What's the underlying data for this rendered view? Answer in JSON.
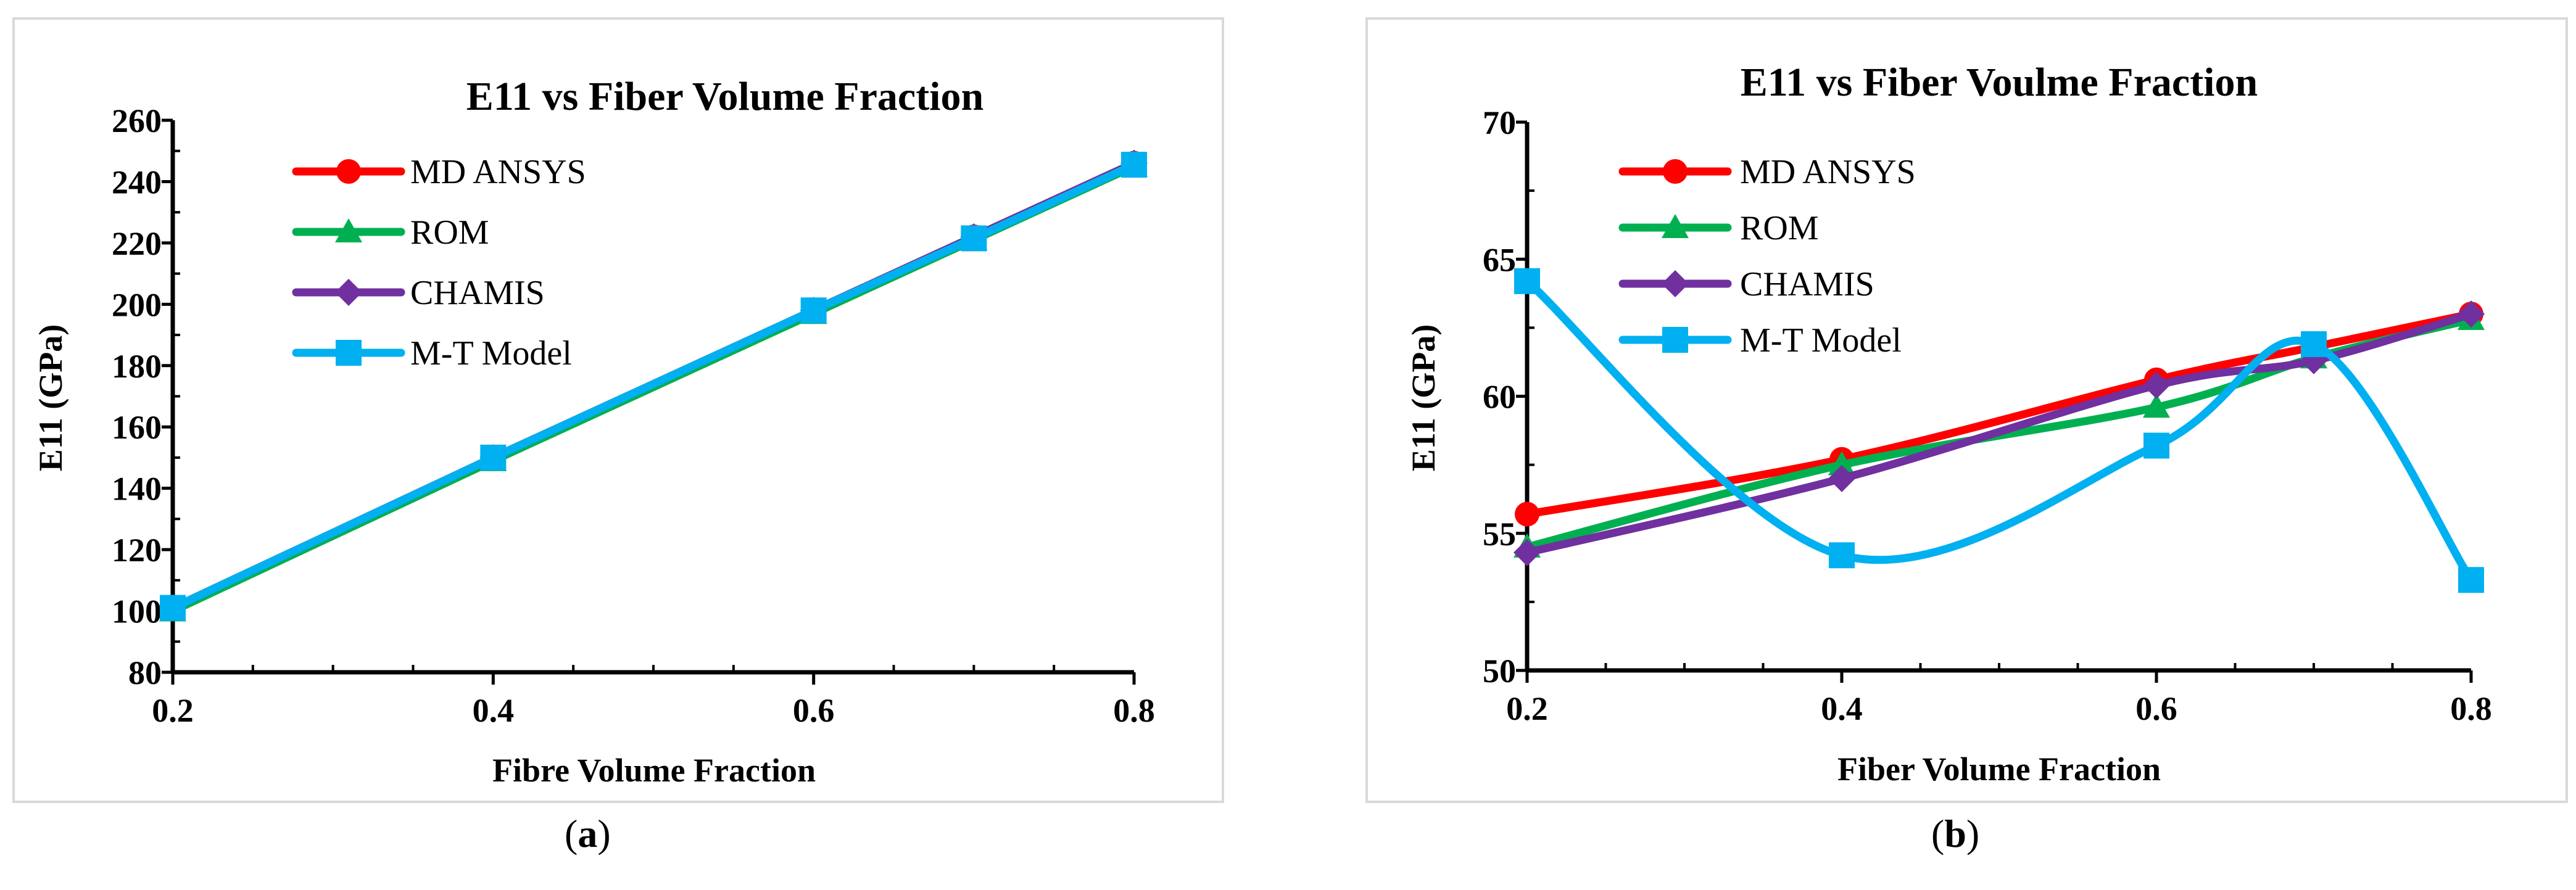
{
  "chart_data": [
    {
      "type": "line",
      "panel": "(a)",
      "title": "E11 vs Fiber Volume Fraction",
      "xlabel": "Fibre Volume Fraction",
      "ylabel": "E11 (GPa)",
      "x": [
        0.2,
        0.4,
        0.6,
        0.7,
        0.8
      ],
      "xticks": [
        "0.2",
        "0.4",
        "0.6",
        "0.8"
      ],
      "xtick_values": [
        0.2,
        0.4,
        0.6,
        0.8
      ],
      "xlim": [
        0.2,
        0.8
      ],
      "ylim": [
        80,
        260
      ],
      "yticks": [
        "80",
        "100",
        "120",
        "140",
        "160",
        "180",
        "200",
        "220",
        "240",
        "260"
      ],
      "ytick_values": [
        80,
        100,
        120,
        140,
        160,
        180,
        200,
        220,
        240,
        260
      ],
      "legend_position": "top-left",
      "series": [
        {
          "name": "MD ANSYS",
          "color": "#ff0000",
          "marker": "circle",
          "values": [
            101,
            150,
            198,
            222,
            246
          ]
        },
        {
          "name": "ROM",
          "color": "#00b050",
          "marker": "triangle",
          "values": [
            100,
            149,
            197,
            221,
            245
          ]
        },
        {
          "name": "CHAMIS",
          "color": "#7030a0",
          "marker": "diamond",
          "values": [
            101,
            150,
            198,
            222,
            246
          ]
        },
        {
          "name": "M-T Model",
          "color": "#00b0f0",
          "marker": "square",
          "values": [
            101,
            150,
            198,
            221.5,
            245.5
          ]
        }
      ]
    },
    {
      "type": "line",
      "panel": "(b)",
      "title": "E11 vs Fiber Voulme Fraction",
      "xlabel": "Fiber Volume Fraction",
      "ylabel": "E11 (GPa)",
      "x": [
        0.2,
        0.4,
        0.6,
        0.7,
        0.8
      ],
      "xticks": [
        "0.2",
        "0.4",
        "0.6",
        "0.8"
      ],
      "xtick_values": [
        0.2,
        0.4,
        0.6,
        0.8
      ],
      "xlim": [
        0.2,
        0.8
      ],
      "ylim": [
        50,
        70
      ],
      "yticks": [
        "50",
        "55",
        "60",
        "65",
        "70"
      ],
      "ytick_values": [
        50,
        55,
        60,
        65,
        70
      ],
      "legend_position": "top-left",
      "series": [
        {
          "name": "MD ANSYS",
          "color": "#ff0000",
          "marker": "circle",
          "values": [
            55.7,
            57.7,
            60.6,
            61.8,
            63.0
          ]
        },
        {
          "name": "ROM",
          "color": "#00b050",
          "marker": "triangle",
          "values": [
            54.5,
            57.5,
            59.6,
            61.4,
            62.8
          ]
        },
        {
          "name": "CHAMIS",
          "color": "#7030a0",
          "marker": "diamond",
          "values": [
            54.3,
            57.0,
            60.4,
            61.3,
            63.0
          ]
        },
        {
          "name": "M-T Model",
          "color": "#00b0f0",
          "marker": "square",
          "values": [
            64.2,
            54.2,
            58.2,
            61.9,
            53.3
          ]
        }
      ]
    }
  ],
  "captions": {
    "a": "a",
    "b": "b"
  }
}
